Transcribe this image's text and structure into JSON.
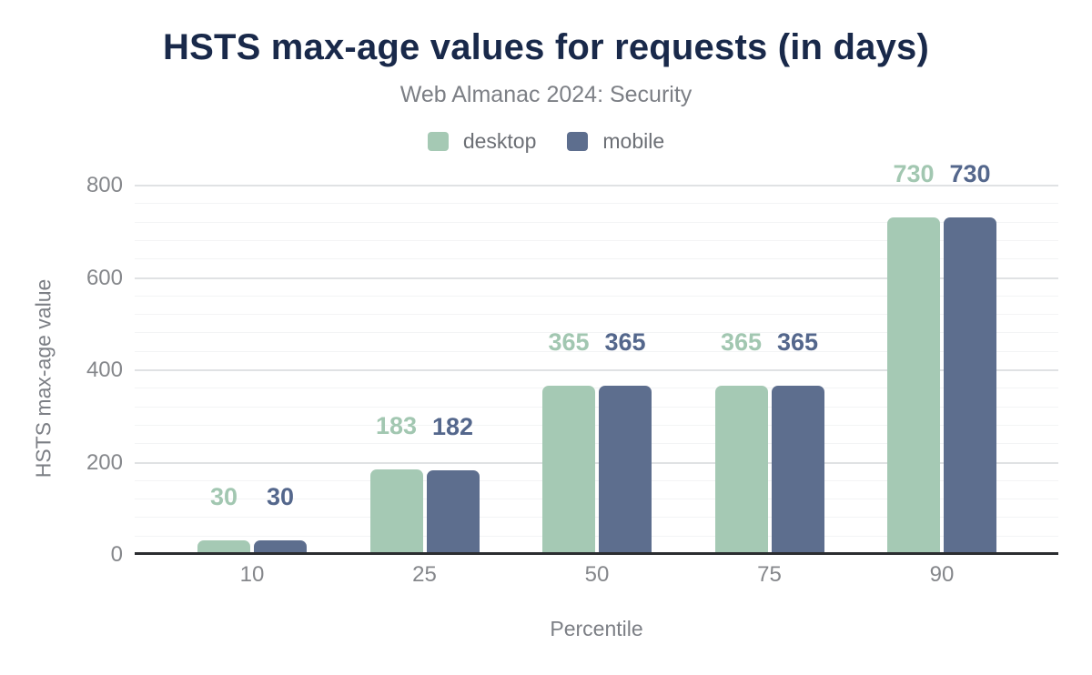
{
  "chart_data": {
    "type": "bar",
    "title": "HSTS max-age values for requests (in days)",
    "subtitle": "Web Almanac 2024: Security",
    "xlabel": "Percentile",
    "ylabel": "HSTS max-age value",
    "categories": [
      "10",
      "25",
      "50",
      "75",
      "90"
    ],
    "series": [
      {
        "name": "desktop",
        "color": "#a5c9b4",
        "label_color": "#a2c7b1",
        "values": [
          30,
          183,
          365,
          365,
          730
        ]
      },
      {
        "name": "mobile",
        "color": "#5d6e8e",
        "label_color": "#54678c",
        "values": [
          30,
          182,
          365,
          365,
          730
        ]
      }
    ],
    "ylim": [
      0,
      800
    ],
    "yticks": [
      0,
      200,
      400,
      600,
      800
    ],
    "minor_tick_step": 40,
    "grid": "horizontal-major-minor",
    "legend_position": "top",
    "value_labels": "above-bars"
  },
  "colors": {
    "title": "#19294a",
    "subtitle_text": "#7c7f85",
    "legend_text": "#6c6f75",
    "axis_text": "#85878b",
    "axis_title_text": "#7c7f85",
    "major_grid": "#e0e2e4",
    "minor_grid": "#f3f4f5",
    "baseline": "#2b2d30",
    "background": "#ffffff"
  }
}
